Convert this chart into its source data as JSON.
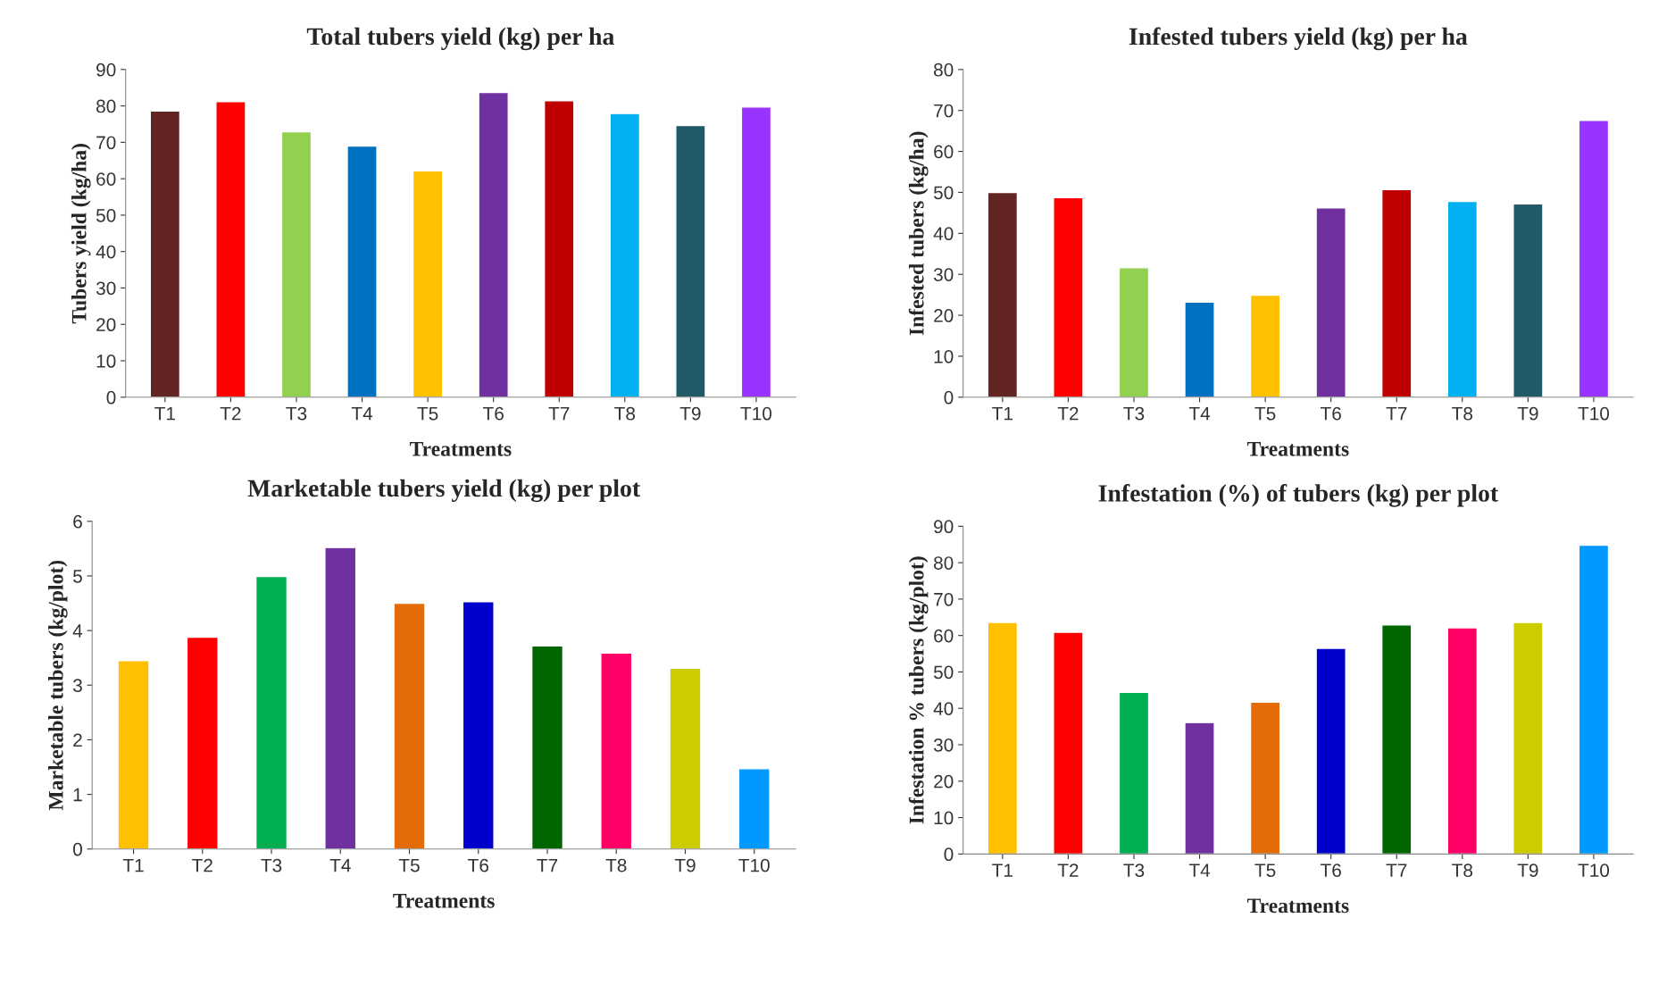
{
  "chart_data": [
    {
      "type": "bar",
      "title": "Total tubers yield (kg) per ha",
      "xlabel": "Treatments",
      "ylabel": "Tubers yield (kg/ha)",
      "categories": [
        "T1",
        "T2",
        "T3",
        "T4",
        "T5",
        "T6",
        "T7",
        "T8",
        "T9",
        "T10"
      ],
      "values": [
        78.6,
        81.2,
        72.9,
        69.0,
        62.2,
        83.7,
        81.4,
        77.9,
        74.6,
        79.7
      ],
      "colors": [
        "#632523",
        "#ff0000",
        "#92d050",
        "#0070c0",
        "#ffc000",
        "#7030a0",
        "#c00000",
        "#00b0f0",
        "#215967",
        "#9933ff"
      ],
      "ylim": [
        0,
        90
      ],
      "yticks": [
        0,
        10,
        20,
        30,
        40,
        50,
        60,
        70,
        80,
        90
      ],
      "grid": false,
      "legend": false
    },
    {
      "type": "bar",
      "title": "Infested tubers yield (kg) per ha",
      "xlabel": "Treatments",
      "ylabel": "Infested tubers (kg/ha)",
      "categories": [
        "T1",
        "T2",
        "T3",
        "T4",
        "T5",
        "T6",
        "T7",
        "T8",
        "T9",
        "T10"
      ],
      "values": [
        50.0,
        48.7,
        31.6,
        23.2,
        24.9,
        46.2,
        50.7,
        47.8,
        47.2,
        67.6
      ],
      "colors": [
        "#632523",
        "#ff0000",
        "#92d050",
        "#0070c0",
        "#ffc000",
        "#7030a0",
        "#c00000",
        "#00b0f0",
        "#215967",
        "#9933ff"
      ],
      "ylim": [
        0,
        80
      ],
      "yticks": [
        0,
        10,
        20,
        30,
        40,
        50,
        60,
        70,
        80
      ],
      "grid": false,
      "legend": false
    },
    {
      "type": "bar",
      "title": "Marketable tubers yield (kg) per plot",
      "xlabel": "Treatments",
      "ylabel": "Marketable tubers (kg/plot)",
      "categories": [
        "T1",
        "T2",
        "T3",
        "T4",
        "T5",
        "T6",
        "T7",
        "T8",
        "T9",
        "T10"
      ],
      "values": [
        3.45,
        3.88,
        4.99,
        5.52,
        4.5,
        4.53,
        3.72,
        3.59,
        3.31,
        1.47
      ],
      "colors": [
        "#ffc000",
        "#ff0000",
        "#00b050",
        "#7030a0",
        "#e36c09",
        "#0000cc",
        "#006600",
        "#ff0066",
        "#cccc00",
        "#0099ff"
      ],
      "ylim": [
        0,
        6
      ],
      "yticks": [
        0,
        1,
        2,
        3,
        4,
        5,
        6
      ],
      "grid": false,
      "legend": false
    },
    {
      "type": "bar",
      "title": "Infestation (%) of tubers (kg) per plot",
      "xlabel": "Treatments",
      "ylabel": "Infestation % tubers (kg/plot)",
      "categories": [
        "T1",
        "T2",
        "T3",
        "T4",
        "T5",
        "T6",
        "T7",
        "T8",
        "T9",
        "T10"
      ],
      "values": [
        63.6,
        60.9,
        44.4,
        36.1,
        41.7,
        56.5,
        62.9,
        62.1,
        63.6,
        84.8
      ],
      "colors": [
        "#ffc000",
        "#ff0000",
        "#00b050",
        "#7030a0",
        "#e36c09",
        "#0000cc",
        "#006600",
        "#ff0066",
        "#cccc00",
        "#0099ff"
      ],
      "ylim": [
        0,
        90
      ],
      "yticks": [
        0,
        10,
        20,
        30,
        40,
        50,
        60,
        70,
        80,
        90
      ],
      "grid": false,
      "legend": false
    }
  ]
}
